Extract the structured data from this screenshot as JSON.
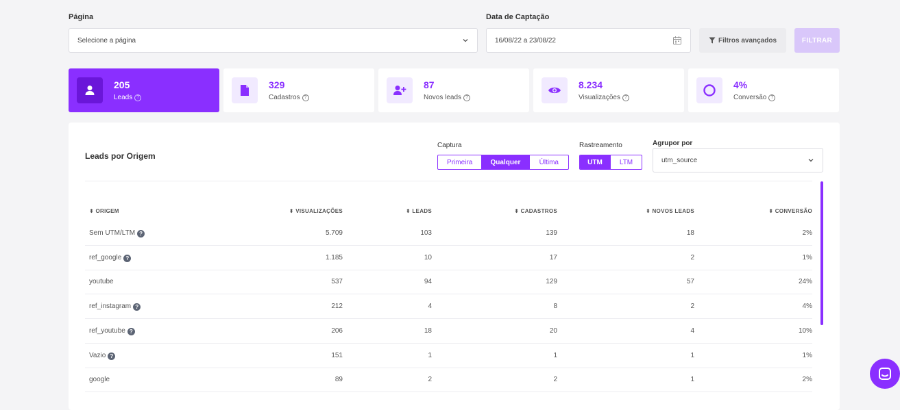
{
  "filters": {
    "page_label": "Página",
    "page_placeholder": "Selecione a página",
    "date_label": "Data de Captação",
    "date_value": "16/08/22 a 23/08/22",
    "advanced_label": "Filtros avançados",
    "filter_label": "FILTRAR"
  },
  "cards": [
    {
      "value": "205",
      "label": "Leads",
      "icon": "user-icon"
    },
    {
      "value": "329",
      "label": "Cadastros",
      "icon": "document-icon"
    },
    {
      "value": "87",
      "label": "Novos leads",
      "icon": "user-plus-icon"
    },
    {
      "value": "8.234",
      "label": "Visualizações",
      "icon": "eye-icon"
    },
    {
      "value": "4%",
      "label": "Conversão",
      "icon": "ring-icon"
    }
  ],
  "panel": {
    "title": "Leads por Origem",
    "capture_label": "Captura",
    "capture_options": [
      "Primeira",
      "Qualquer",
      "Última"
    ],
    "tracking_label": "Rastreamento",
    "tracking_options": [
      "UTM",
      "LTM"
    ],
    "group_label": "Agrupor por",
    "group_value": "utm_source"
  },
  "table": {
    "headers": [
      "ORIGEM",
      "VISUALIZAÇÕES",
      "LEADS",
      "CADASTROS",
      "NOVOS LEADS",
      "CONVERSÃO"
    ],
    "rows": [
      {
        "origem": "Sem UTM/LTM",
        "help": true,
        "views": "5.709",
        "leads": "103",
        "cadastros": "139",
        "novos": "18",
        "conv": "2%"
      },
      {
        "origem": "ref_google",
        "help": true,
        "views": "1.185",
        "leads": "10",
        "cadastros": "17",
        "novos": "2",
        "conv": "1%"
      },
      {
        "origem": "youtube",
        "help": false,
        "views": "537",
        "leads": "94",
        "cadastros": "129",
        "novos": "57",
        "conv": "24%"
      },
      {
        "origem": "ref_instagram",
        "help": true,
        "views": "212",
        "leads": "4",
        "cadastros": "8",
        "novos": "2",
        "conv": "4%"
      },
      {
        "origem": "ref_youtube",
        "help": true,
        "views": "206",
        "leads": "18",
        "cadastros": "20",
        "novos": "4",
        "conv": "10%"
      },
      {
        "origem": "Vazio",
        "help": true,
        "views": "151",
        "leads": "1",
        "cadastros": "1",
        "novos": "1",
        "conv": "1%"
      },
      {
        "origem": "google",
        "help": false,
        "views": "89",
        "leads": "2",
        "cadastros": "2",
        "novos": "1",
        "conv": "2%"
      }
    ]
  },
  "colors": {
    "accent": "#8a2fff"
  }
}
